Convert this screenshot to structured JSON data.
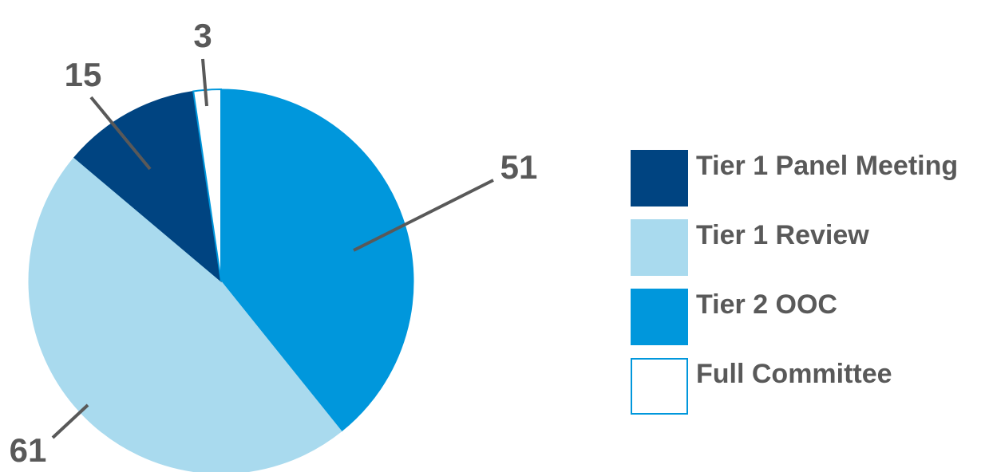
{
  "chart_data": {
    "type": "pie",
    "title": "",
    "categories": [
      "Tier 1 Panel Meeting",
      "Tier 1 Review",
      "Tier 2 OOC",
      "Full Committee"
    ],
    "values": [
      15,
      61,
      51,
      3
    ],
    "data_labels": [
      "15",
      "61",
      "51",
      "3"
    ],
    "slice_order_clockwise_from_top": [
      "Tier 2 OOC",
      "Tier 1 Review",
      "Tier 1 Panel Meeting",
      "Full Committee"
    ],
    "colors": {
      "Tier 1 Panel Meeting": "#004481",
      "Tier 1 Review": "#A9DAEE",
      "Tier 2 OOC": "#0097DC",
      "Full Committee": "#FFFFFF"
    },
    "outline_color": "#0097DC",
    "leader_line_color": "#595959",
    "label_color": "#595959",
    "legend": {
      "placement": "right",
      "items": [
        "Tier 1 Panel Meeting",
        "Tier 1 Review",
        "Tier 2 OOC",
        "Full Committee"
      ]
    }
  }
}
